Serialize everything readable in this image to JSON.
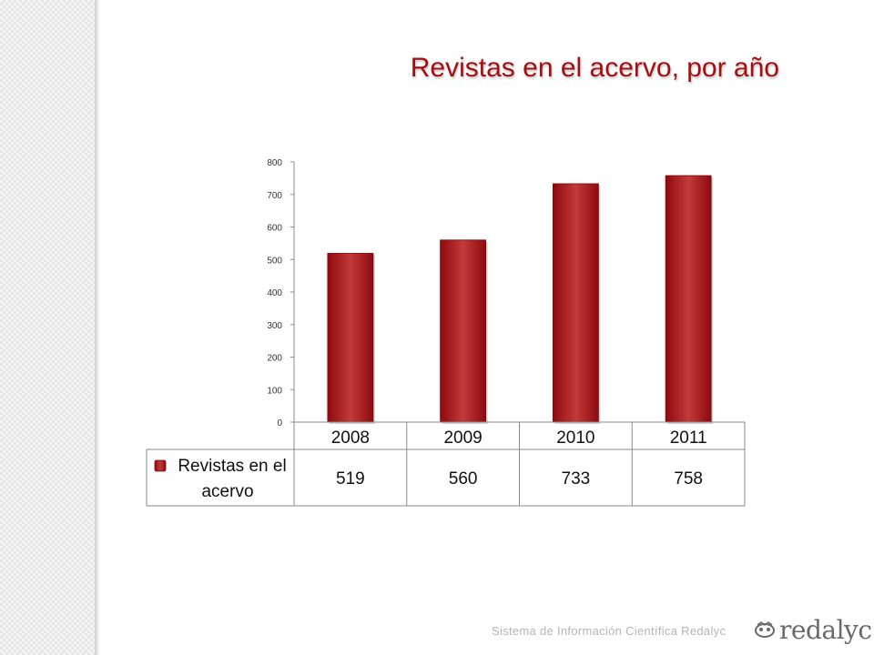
{
  "slide": {
    "title": "Revistas en el acervo, por año",
    "footer_text": "Sistema de Información Científica Redalyc"
  },
  "logo": {
    "text": "redalyc",
    "icon": "redalyc-logo-icon"
  },
  "colors": {
    "bar": "#9b0f14",
    "bar_light": "#c23a3a",
    "title": "#a50e12"
  },
  "chart_data": {
    "type": "bar",
    "categories": [
      "2008",
      "2009",
      "2010",
      "2011"
    ],
    "series": [
      {
        "name": "Revistas en el acervo",
        "values": [
          519,
          560,
          733,
          758
        ]
      }
    ],
    "yticks": [
      "0",
      "100",
      "200",
      "300",
      "400",
      "500",
      "600",
      "700",
      "800"
    ],
    "ylim": [
      0,
      800
    ],
    "grid": false,
    "legend": "data-table-left",
    "data_table": true
  }
}
